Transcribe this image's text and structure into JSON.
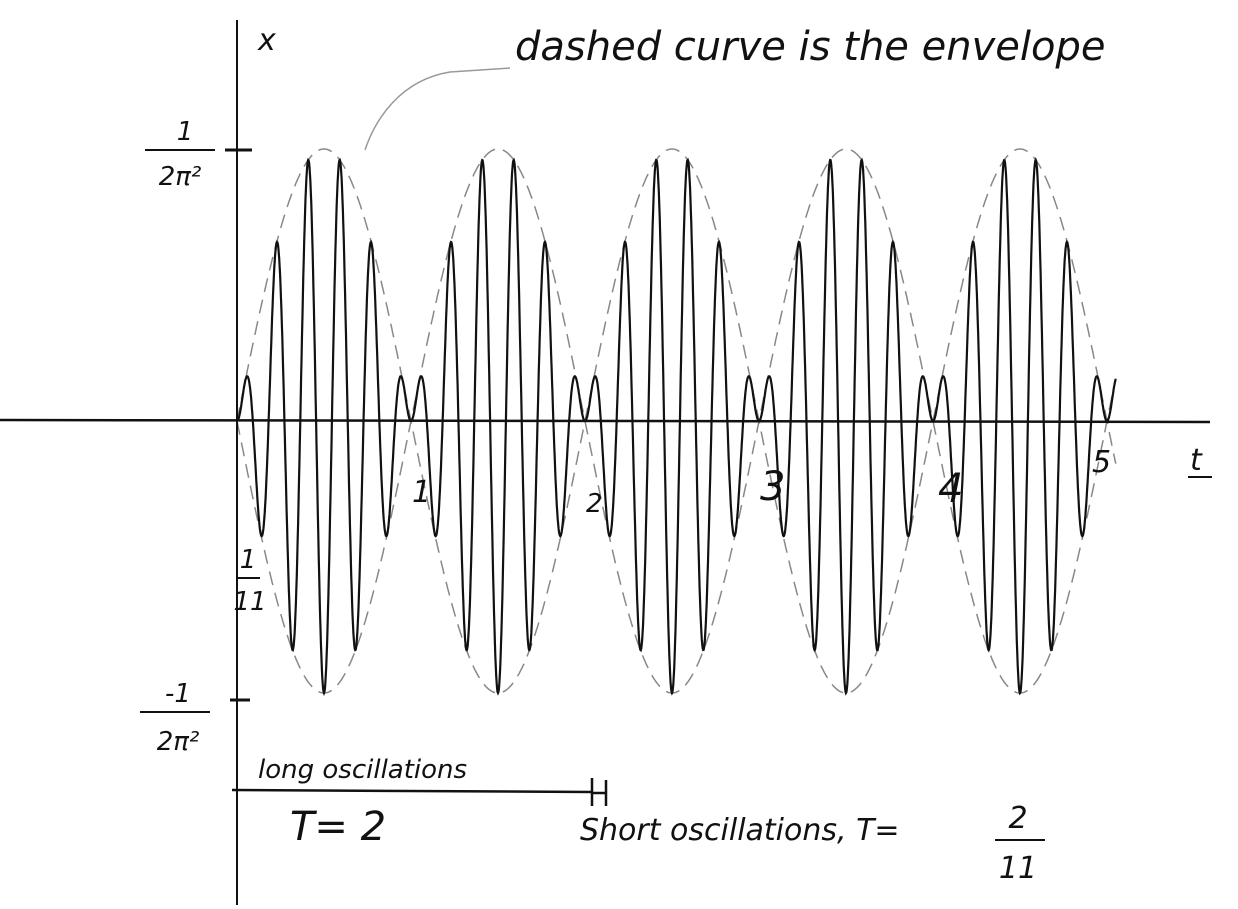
{
  "axes": {
    "y_label": "x",
    "x_label": "t"
  },
  "annotation": "dashed curve is the envelope",
  "y_ticks": [
    {
      "numerator": "1",
      "denominator": "2π²"
    },
    {
      "numerator": "-1",
      "denominator": "2π²"
    }
  ],
  "short_mark": {
    "numerator": "1",
    "denominator": "11"
  },
  "t_ticks": [
    "1",
    "2",
    "3",
    "4",
    "5"
  ],
  "long_note": {
    "line1": "long oscillations",
    "line2": "T= 2"
  },
  "short_note": {
    "text": "Short oscillations, T=",
    "numerator": "2",
    "denominator": "11"
  }
}
